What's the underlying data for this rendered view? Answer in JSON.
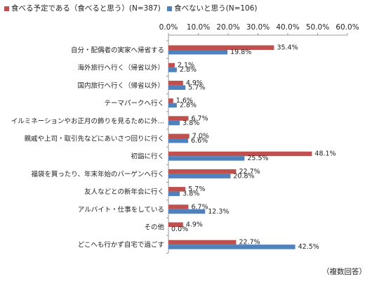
{
  "chart_data": {
    "type": "bar",
    "orientation": "horizontal",
    "categories": [
      "自分・配偶者の実家へ帰省する",
      "海外旅行へ行く（帰省以外）",
      "国内旅行へ行く（帰省以外）",
      "テーマパークへ行く",
      "イルミネーションやお正月の飾りを見るために外…",
      "親戚や上司・取引先などにあいさつ回りに行く",
      "初詣に行く",
      "福袋を買ったり、年末年始のバーゲンへ行く",
      "友人などとの新年会に行く",
      "アルバイト・仕事をしている",
      "その他",
      "どこへも行かず自宅で過ごす"
    ],
    "series": [
      {
        "name": "食べる予定である（食べると思う）(N=387)",
        "color": "#C0504D",
        "values": [
          35.4,
          2.1,
          4.9,
          1.6,
          6.7,
          7.0,
          48.1,
          22.7,
          5.7,
          6.7,
          4.9,
          22.7
        ],
        "labels": [
          "35.4%",
          "2.1%",
          "4.9%",
          "1.6%",
          "6.7%",
          "7.0%",
          "48.1%",
          "22.7%",
          "5.7%",
          "6.7%",
          "4.9%",
          "22.7%"
        ]
      },
      {
        "name": "食べないと思う(N=106)",
        "color": "#4F81BD",
        "values": [
          19.8,
          2.8,
          5.7,
          2.8,
          3.8,
          6.6,
          25.5,
          20.8,
          3.8,
          12.3,
          0.0,
          42.5
        ],
        "labels": [
          "19.8%",
          "2.8%",
          "5.7%",
          "2.8%",
          "3.8%",
          "6.6%",
          "25.5%",
          "20.8%",
          "3.8%",
          "12.3%",
          "0.0%",
          "42.5%"
        ]
      }
    ],
    "xlim": [
      0,
      60
    ],
    "xticks": [
      "0.0%",
      "10.0%",
      "20.0%",
      "30.0%",
      "40.0%",
      "50.0%",
      "60.0%"
    ],
    "xtick_values": [
      0,
      10,
      20,
      30,
      40,
      50,
      60
    ],
    "axis_position": "top",
    "grid": false,
    "legend_position": "top-left"
  },
  "footnote": "（複数回答）"
}
